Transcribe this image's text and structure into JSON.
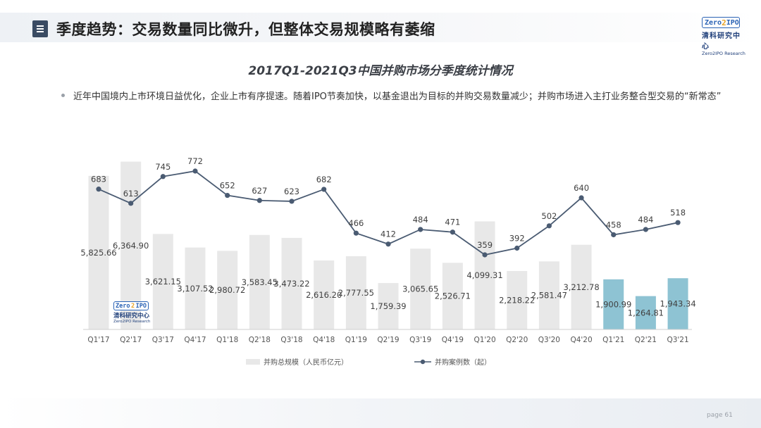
{
  "header": {
    "title": "季度趋势：交易数量同比微升，但整体交易规模略有萎缩",
    "logo_mark_left": "Zero",
    "logo_mark_right": "IPO",
    "logo_cn": "清科研究中心",
    "logo_en": "Zero2IPO Research"
  },
  "bullet": {
    "text": "近年中国境内上市环境日益优化，企业上市有序提速。随着IPO节奏加快，以基金退出为目标的并购交易数量减少；并购市场进入主打业务整合型交易的“新常态”"
  },
  "footer": {
    "page_label": "page",
    "page_number": "61"
  },
  "colors": {
    "bar_default": "#e8e8e8",
    "bar_highlight": "#8ec3d3",
    "line": "#4a5b72",
    "label": "#404040"
  },
  "chart_data": {
    "type": "bar+line",
    "title": "2017Q1-2021Q3中国并购市场分季度统计情况",
    "categories": [
      "Q1'17",
      "Q2'17",
      "Q3'17",
      "Q4'17",
      "Q1'18",
      "Q2'18",
      "Q3'18",
      "Q4'18",
      "Q1'19",
      "Q2'19",
      "Q3'19",
      "Q4'19",
      "Q1'20",
      "Q2'20",
      "Q3'20",
      "Q4'20",
      "Q1'21",
      "Q2'21",
      "Q3'21"
    ],
    "series": [
      {
        "name": "并购总规模（人民币亿元）",
        "type": "bar",
        "values": [
          5825.66,
          6364.9,
          3621.15,
          3107.52,
          2980.72,
          3583.45,
          3473.22,
          2616.2,
          2777.55,
          1759.39,
          3065.65,
          2526.71,
          4099.31,
          2218.22,
          2581.47,
          3212.78,
          1900.99,
          1264.81,
          1943.34
        ],
        "labels": [
          "5,825.66",
          "6,364.90",
          "3,621.15",
          "3,107.52",
          "2,980.72",
          "3,583.45",
          "3,473.22",
          "2,616.20",
          "2,777.55",
          "1,759.39",
          "3,065.65",
          "2,526.71",
          "4,099.31",
          "2,218.22",
          "2,581.47",
          "3,212.78",
          "1,900.99",
          "1,264.81",
          "1,943.34"
        ],
        "highlight": [
          "Q1'21",
          "Q2'21",
          "Q3'21"
        ]
      },
      {
        "name": "并购案例数（起）",
        "type": "line",
        "values": [
          683,
          613,
          745,
          772,
          652,
          627,
          623,
          682,
          466,
          412,
          484,
          471,
          359,
          392,
          502,
          640,
          458,
          484,
          518
        ]
      }
    ],
    "legend_position": "bottom",
    "grid": false
  }
}
